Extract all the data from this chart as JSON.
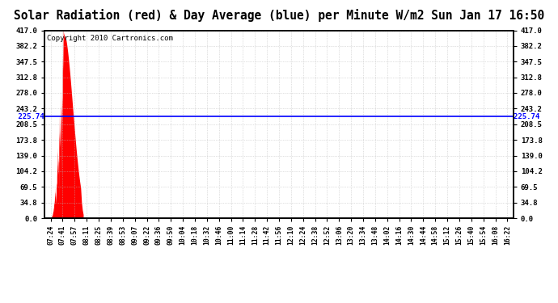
{
  "title": "Solar Radiation (red) & Day Average (blue) per Minute W/m2 Sun Jan 17 16:50",
  "copyright": "Copyright 2010 Cartronics.com",
  "avg_value": 225.74,
  "avg_label": "225.74",
  "y_ticks": [
    0.0,
    34.8,
    69.5,
    104.2,
    139.0,
    173.8,
    208.5,
    243.2,
    278.0,
    312.8,
    347.5,
    382.2,
    417.0
  ],
  "y_max": 417.0,
  "y_min": 0.0,
  "x_labels": [
    "07:24",
    "07:41",
    "07:57",
    "08:11",
    "08:25",
    "08:39",
    "08:53",
    "09:07",
    "09:22",
    "09:36",
    "09:50",
    "10:04",
    "10:18",
    "10:32",
    "10:46",
    "11:00",
    "11:14",
    "11:28",
    "11:42",
    "11:56",
    "12:10",
    "12:24",
    "12:38",
    "12:52",
    "13:06",
    "13:20",
    "13:34",
    "13:48",
    "14:02",
    "14:16",
    "14:30",
    "14:44",
    "14:58",
    "15:12",
    "15:26",
    "15:40",
    "15:54",
    "16:08",
    "16:22"
  ],
  "bg_color": "#ffffff",
  "fill_color": "#ff0000",
  "line_color": "#0000ff",
  "grid_color": "#bbbbbb",
  "title_fontsize": 10.5,
  "copyright_fontsize": 6.5
}
